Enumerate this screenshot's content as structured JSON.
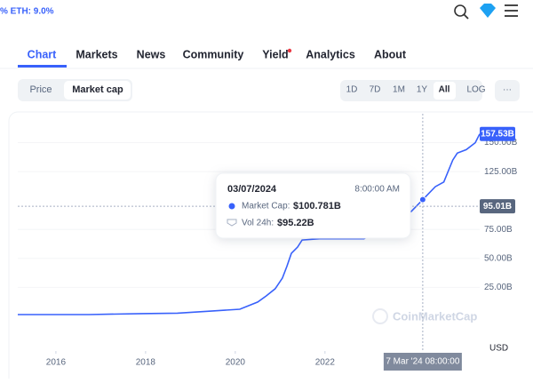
{
  "header": {
    "ticker_text": "% ETH: 9.0%"
  },
  "tabs": [
    "Chart",
    "Markets",
    "News",
    "Community",
    "Yield",
    "Analytics",
    "About"
  ],
  "toggle": [
    "Price",
    "Market cap"
  ],
  "ranges": [
    "1D",
    "7D",
    "1M",
    "1Y",
    "All",
    "LOG"
  ],
  "chart": {
    "type": "line",
    "color": "#3861fb",
    "x": [
      2015.15,
      2016.73,
      2017.92,
      2018.71,
      2019.5,
      2020.1,
      2020.5,
      2020.69,
      2020.89,
      2021.05,
      2021.15,
      2021.25,
      2021.39,
      2021.49,
      2021.88,
      2022.48,
      2022.87,
      2023.27,
      2023.92,
      2024.18,
      2024.46,
      2024.65,
      2024.85,
      2024.95,
      2025.15,
      2025.35,
      2025.45
    ],
    "values": [
      1.5,
      1.5,
      2.3,
      2.7,
      4.6,
      6.1,
      12.3,
      17.6,
      23.8,
      33,
      43,
      54.4,
      59.8,
      65.9,
      67,
      67,
      67,
      75,
      90.5,
      100.781,
      112,
      116,
      135,
      141,
      144,
      150,
      157.53
    ],
    "xlim": [
      2015.15,
      2025.45
    ],
    "xticks": [
      2016,
      2018,
      2020,
      2022
    ],
    "ylim": [
      -30,
      175
    ],
    "yticks": [
      {
        "value": 25,
        "label": "25.00B"
      },
      {
        "value": 50,
        "label": "50.00B"
      },
      {
        "value": 75,
        "label": "75.00B"
      },
      {
        "value": 125,
        "label": "125.00B"
      },
      {
        "value": 150,
        "label": "150.00B"
      }
    ],
    "y_unit": "USD",
    "price_labels": [
      {
        "value": 157.53,
        "label": "157.53B",
        "color": "#3861fb"
      },
      {
        "value": 95.01,
        "label": "95.01B",
        "color": "#58667e"
      }
    ],
    "watermark": "CoinMarketCap",
    "crosshair": {
      "x": 2024.18,
      "label": "7 Mar '24 08:00:00"
    },
    "tooltip": {
      "date": "03/07/2024",
      "time": "8:00:00 AM",
      "market_cap_name": "Market Cap:",
      "market_cap": "$100.781B",
      "volume_name": "Vol 24h:",
      "volume": "$95.22B"
    }
  }
}
